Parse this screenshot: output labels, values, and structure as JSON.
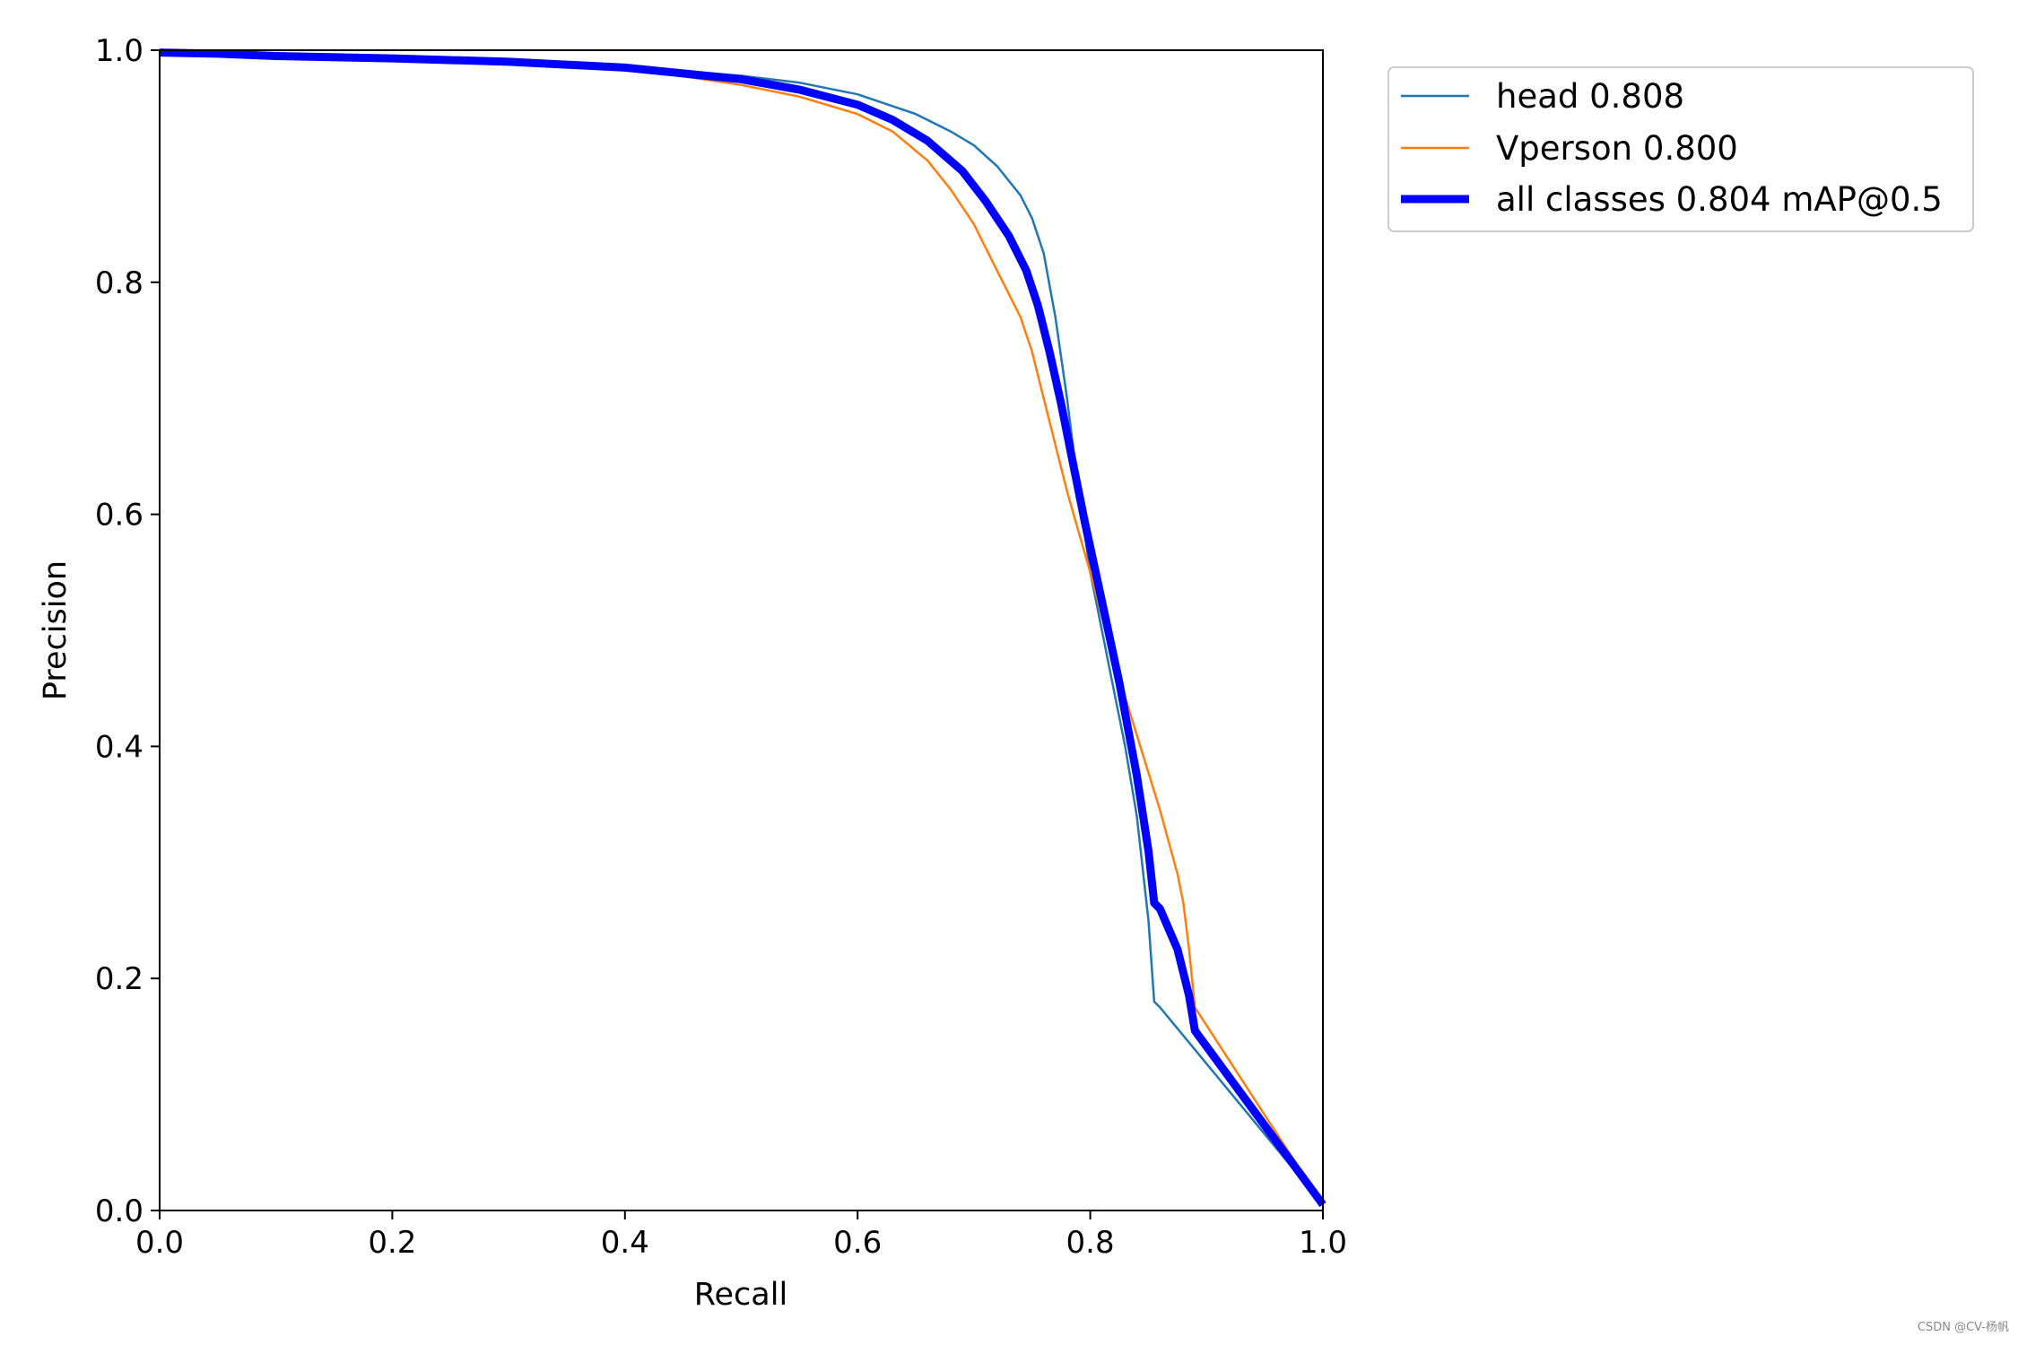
{
  "chart_data": {
    "type": "line",
    "xlabel": "Recall",
    "ylabel": "Precision",
    "xlim": [
      0,
      1
    ],
    "ylim": [
      0,
      1
    ],
    "xticks": [
      "0.0",
      "0.2",
      "0.4",
      "0.6",
      "0.8",
      "1.0"
    ],
    "yticks": [
      "0.0",
      "0.2",
      "0.4",
      "0.6",
      "0.8",
      "1.0"
    ],
    "grid": false,
    "legend_position": "outside-top-right",
    "series": [
      {
        "name": "head 0.808",
        "color": "#1f77b4",
        "width": "thin",
        "x": [
          0,
          0.05,
          0.1,
          0.2,
          0.3,
          0.4,
          0.5,
          0.55,
          0.6,
          0.65,
          0.68,
          0.7,
          0.72,
          0.74,
          0.75,
          0.76,
          0.77,
          0.78,
          0.79,
          0.8,
          0.81,
          0.82,
          0.83,
          0.84,
          0.85,
          0.855,
          0.86,
          1.0
        ],
        "y": [
          0.998,
          0.997,
          0.995,
          0.993,
          0.99,
          0.986,
          0.978,
          0.972,
          0.962,
          0.945,
          0.93,
          0.918,
          0.9,
          0.875,
          0.855,
          0.825,
          0.77,
          0.7,
          0.62,
          0.55,
          0.5,
          0.45,
          0.4,
          0.34,
          0.25,
          0.18,
          0.175,
          0.005
        ]
      },
      {
        "name": "Vperson 0.800",
        "color": "#ff7f0e",
        "width": "thin",
        "x": [
          0,
          0.05,
          0.1,
          0.2,
          0.3,
          0.4,
          0.5,
          0.55,
          0.6,
          0.63,
          0.66,
          0.68,
          0.7,
          0.72,
          0.74,
          0.75,
          0.76,
          0.77,
          0.78,
          0.79,
          0.8,
          0.82,
          0.84,
          0.86,
          0.875,
          0.88,
          0.885,
          0.89,
          1.0
        ],
        "y": [
          0.998,
          0.997,
          0.995,
          0.992,
          0.989,
          0.985,
          0.97,
          0.96,
          0.945,
          0.93,
          0.905,
          0.88,
          0.85,
          0.81,
          0.77,
          0.74,
          0.7,
          0.66,
          0.62,
          0.585,
          0.55,
          0.475,
          0.41,
          0.345,
          0.29,
          0.265,
          0.225,
          0.175,
          0.005
        ]
      },
      {
        "name": "all classes 0.804 mAP@0.5",
        "color": "#0000ff",
        "width": "thick",
        "x": [
          0,
          0.05,
          0.1,
          0.2,
          0.3,
          0.4,
          0.5,
          0.55,
          0.6,
          0.63,
          0.66,
          0.69,
          0.71,
          0.73,
          0.745,
          0.755,
          0.765,
          0.775,
          0.785,
          0.795,
          0.81,
          0.825,
          0.84,
          0.85,
          0.855,
          0.86,
          0.875,
          0.885,
          0.89,
          1.0
        ],
        "y": [
          0.998,
          0.997,
          0.995,
          0.993,
          0.99,
          0.985,
          0.975,
          0.966,
          0.953,
          0.94,
          0.922,
          0.896,
          0.87,
          0.84,
          0.81,
          0.78,
          0.74,
          0.695,
          0.645,
          0.595,
          0.525,
          0.455,
          0.375,
          0.31,
          0.265,
          0.26,
          0.225,
          0.185,
          0.155,
          0.005
        ]
      }
    ]
  },
  "watermark": "CSDN @CV-杨帆"
}
